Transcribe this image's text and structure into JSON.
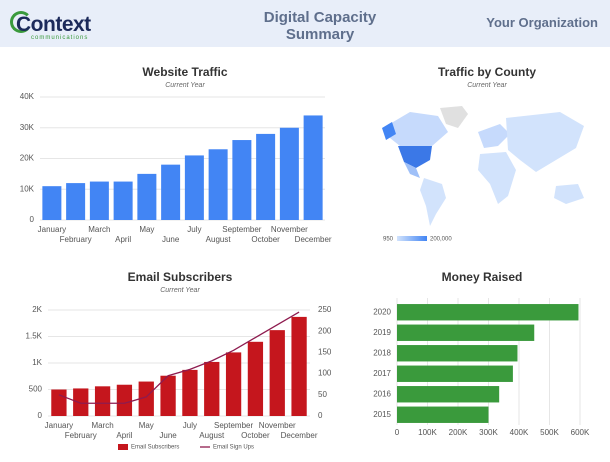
{
  "header": {
    "logo": "Context",
    "logo_sub": "communications",
    "title": "Digital Capacity Summary",
    "organization": "Your Organization"
  },
  "chart_data": [
    {
      "type": "bar",
      "title": "Website Traffic",
      "subtitle": "Current Year",
      "categories": [
        "January",
        "February",
        "March",
        "April",
        "May",
        "June",
        "July",
        "August",
        "September",
        "October",
        "November",
        "December"
      ],
      "values": [
        11000,
        12000,
        12500,
        12500,
        15000,
        18000,
        21000,
        23000,
        26000,
        28000,
        30000,
        34000
      ],
      "color": "#4285f4",
      "ylim": [
        0,
        40000
      ],
      "yticks": [
        0,
        {
          "value": 10000,
          "label": "10K"
        },
        {
          "value": 20000,
          "label": "20K"
        },
        {
          "value": 30000,
          "label": "30K"
        },
        {
          "value": 40000,
          "label": "40K"
        }
      ],
      "grid": true
    },
    {
      "type": "map",
      "title": "Traffic by County",
      "subtitle": "Current Year",
      "color_scale": {
        "min": 950,
        "max": {
          "value": 200000,
          "label": "200,000"
        },
        "colors": [
          "#d2e3fc",
          "#4285f4"
        ]
      }
    },
    {
      "type": "combo",
      "title": "Email Subscribers",
      "subtitle": "Current Year",
      "categories": [
        "January",
        "February",
        "March",
        "April",
        "May",
        "June",
        "July",
        "August",
        "September",
        "October",
        "November",
        "December"
      ],
      "series": [
        {
          "name": "Email Subscribers",
          "color": "#c5161d",
          "values": [
            500,
            520,
            560,
            590,
            650,
            760,
            870,
            1020,
            1200,
            1400,
            1620,
            1870
          ]
        },
        {
          "name": "Email Sign Ups",
          "color": "#8e1b4f",
          "axis": "y2",
          "values": [
            50,
            30,
            30,
            30,
            45,
            95,
            110,
            130,
            155,
            185,
            215,
            245
          ]
        }
      ],
      "ylim": [
        0,
        2000
      ],
      "yticks": [
        0,
        500,
        {
          "value": 1000,
          "label": "1K"
        },
        {
          "value": 1500,
          "label": "1.5K"
        },
        {
          "value": 2000,
          "label": "2K"
        }
      ],
      "y2lim": [
        0,
        250
      ],
      "y2ticks": [
        0,
        50,
        100,
        150,
        200,
        250
      ],
      "grid": true
    },
    {
      "type": "hbar",
      "title": "Money Raised",
      "categories": [
        "2020",
        "2019",
        "2018",
        "2017",
        "2016",
        "2015"
      ],
      "values": [
        595000,
        450000,
        395000,
        380000,
        335000,
        300000
      ],
      "color": "#3a9a3c",
      "xlim": [
        0,
        600000
      ],
      "xticks": [
        0,
        {
          "value": 100000,
          "label": "100K"
        },
        {
          "value": 200000,
          "label": "200K"
        },
        {
          "value": 300000,
          "label": "300K"
        },
        {
          "value": 400000,
          "label": "400K"
        },
        {
          "value": 500000,
          "label": "500K"
        },
        {
          "value": 600000,
          "label": "600K"
        }
      ],
      "grid": true
    }
  ]
}
